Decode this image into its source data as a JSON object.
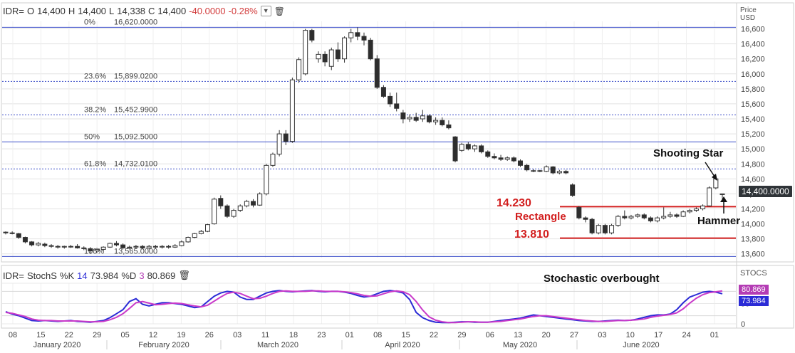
{
  "header": {
    "symbol": "IDR=",
    "open_label": "O",
    "open": "14,400",
    "high_label": "H",
    "high": "14,400",
    "low_label": "L",
    "low": "14,338",
    "close_label": "C",
    "close": "14,400",
    "change": "-40.0000",
    "change_pct": "-0.28%",
    "dropdown_icon": "chevron-down-icon",
    "delete_icon": "trash-icon"
  },
  "price_axis": {
    "title_line1": "Price",
    "title_line2": "USD",
    "last_value": "14,400.0000"
  },
  "stoch_header": {
    "symbol": "IDR=",
    "name": "StochS",
    "k_label": "%K",
    "k_period": "14",
    "k_value": "73.984",
    "d_label": "%D",
    "d_period": "3",
    "d_value": "80.869",
    "delete_icon": "trash-icon"
  },
  "stoch_axis": {
    "title": "STOCS",
    "d_tag": "80.869",
    "k_tag": "73.984"
  },
  "annotations": {
    "shooting_star": "Shooting Star",
    "hammer": "Hammer",
    "rect_top": "14.230",
    "rectangle": "Rectangle",
    "rect_bottom": "13.810",
    "stoch_overbought": "Stochastic overbought"
  },
  "colors": {
    "up_candle": "#ffffff",
    "down_candle": "#2d2d2d",
    "fib_line": "#3b4ec8",
    "rect_line": "#d21e1e",
    "k_line": "#2b2bd6",
    "d_line": "#c93ac9",
    "grid": "#e2e2e2"
  },
  "chart_data": [
    {
      "type": "candlestick",
      "title": "IDR=",
      "ylabel": "Price USD",
      "ylim": [
        13550,
        16700
      ],
      "yticks": [
        13600,
        13800,
        14000,
        14200,
        14400,
        14600,
        14800,
        15000,
        15200,
        15400,
        15600,
        15800,
        16000,
        16200,
        16400,
        16600
      ],
      "ytick_labels": [
        "13,600",
        "13,800",
        "14,000",
        "14,200",
        "14,400",
        "14,600",
        "14,800",
        "15,000",
        "15,200",
        "15,400",
        "15,600",
        "15,800",
        "16,000",
        "16,200",
        "16,400",
        "16,600"
      ],
      "x_tick_labels": [
        "08",
        "15",
        "22",
        "29",
        "05",
        "12",
        "19",
        "26",
        "03",
        "11",
        "18",
        "23",
        "01",
        "08",
        "15",
        "22",
        "29",
        "06",
        "13",
        "20",
        "27",
        "03",
        "10",
        "17",
        "24",
        "01"
      ],
      "month_labels": [
        "January 2020",
        "February 2020",
        "March 2020",
        "April 2020",
        "May 2020",
        "June 2020"
      ],
      "fibonacci": [
        {
          "label": "0%",
          "value": "16,620.0000",
          "price": 16620,
          "style": "solid"
        },
        {
          "label": "23.6%",
          "value": "15,899.0200",
          "price": 15899.02,
          "style": "dotted"
        },
        {
          "label": "38.2%",
          "value": "15,452.9900",
          "price": 15452.99,
          "style": "dotted"
        },
        {
          "label": "50%",
          "value": "15,092.5000",
          "price": 15092.5,
          "style": "solid"
        },
        {
          "label": "61.8%",
          "value": "14,732.0100",
          "price": 14732.01,
          "style": "dotted"
        },
        {
          "label": "100%",
          "value": "13,565.0000",
          "price": 13565,
          "style": "solid"
        }
      ],
      "rectangle_levels": [
        14230,
        13810
      ],
      "ohlc": [
        [
          13890,
          13900,
          13860,
          13880
        ],
        [
          13880,
          13900,
          13860,
          13870
        ],
        [
          13870,
          13880,
          13800,
          13820
        ],
        [
          13820,
          13830,
          13740,
          13760
        ],
        [
          13760,
          13770,
          13700,
          13720
        ],
        [
          13720,
          13760,
          13700,
          13740
        ],
        [
          13730,
          13750,
          13690,
          13710
        ],
        [
          13710,
          13730,
          13680,
          13700
        ],
        [
          13700,
          13720,
          13670,
          13690
        ],
        [
          13690,
          13710,
          13670,
          13700
        ],
        [
          13700,
          13720,
          13680,
          13700
        ],
        [
          13700,
          13730,
          13670,
          13680
        ],
        [
          13680,
          13700,
          13650,
          13670
        ],
        [
          13670,
          13690,
          13600,
          13640
        ],
        [
          13640,
          13680,
          13610,
          13660
        ],
        [
          13660,
          13700,
          13640,
          13690
        ],
        [
          13690,
          13750,
          13680,
          13740
        ],
        [
          13740,
          13770,
          13700,
          13720
        ],
        [
          13720,
          13740,
          13660,
          13680
        ],
        [
          13680,
          13710,
          13660,
          13690
        ],
        [
          13690,
          13720,
          13670,
          13700
        ],
        [
          13700,
          13720,
          13660,
          13680
        ],
        [
          13680,
          13720,
          13660,
          13700
        ],
        [
          13700,
          13720,
          13670,
          13690
        ],
        [
          13690,
          13720,
          13670,
          13700
        ],
        [
          13700,
          13720,
          13670,
          13690
        ],
        [
          13690,
          13730,
          13680,
          13710
        ],
        [
          13710,
          13780,
          13700,
          13760
        ],
        [
          13760,
          13830,
          13750,
          13820
        ],
        [
          13820,
          13880,
          13810,
          13870
        ],
        [
          13870,
          13920,
          13860,
          13900
        ],
        [
          13900,
          14000,
          13890,
          13990
        ],
        [
          14000,
          14350,
          13990,
          14330
        ],
        [
          14340,
          14380,
          14200,
          14240
        ],
        [
          14240,
          14260,
          14080,
          14100
        ],
        [
          14100,
          14200,
          14080,
          14180
        ],
        [
          14180,
          14260,
          14160,
          14240
        ],
        [
          14240,
          14320,
          14220,
          14300
        ],
        [
          14300,
          14330,
          14220,
          14250
        ],
        [
          14250,
          14420,
          14240,
          14400
        ],
        [
          14400,
          14800,
          14380,
          14780
        ],
        [
          14780,
          14950,
          14760,
          14930
        ],
        [
          14930,
          15250,
          14900,
          15200
        ],
        [
          15200,
          15250,
          15050,
          15100
        ],
        [
          15100,
          15950,
          15080,
          15920
        ],
        [
          15920,
          16220,
          15880,
          16190
        ],
        [
          16000,
          16600,
          15980,
          16580
        ],
        [
          16580,
          16600,
          16420,
          16450
        ],
        [
          16200,
          16300,
          16150,
          16260
        ],
        [
          16260,
          16300,
          16100,
          16160
        ],
        [
          16100,
          16350,
          16050,
          16320
        ],
        [
          16320,
          16420,
          16160,
          16200
        ],
        [
          16200,
          16500,
          16150,
          16480
        ],
        [
          16480,
          16600,
          16420,
          16550
        ],
        [
          16550,
          16620,
          16450,
          16500
        ],
        [
          16500,
          16550,
          16380,
          16450
        ],
        [
          16450,
          16480,
          16180,
          16200
        ],
        [
          16200,
          16250,
          15800,
          15820
        ],
        [
          15820,
          15850,
          15680,
          15700
        ],
        [
          15700,
          15750,
          15560,
          15600
        ],
        [
          15600,
          15750,
          15500,
          15540
        ],
        [
          15480,
          15520,
          15340,
          15400
        ],
        [
          15400,
          15460,
          15360,
          15420
        ],
        [
          15420,
          15480,
          15360,
          15380
        ],
        [
          15400,
          15520,
          15360,
          15440
        ],
        [
          15440,
          15460,
          15340,
          15360
        ],
        [
          15360,
          15420,
          15320,
          15380
        ],
        [
          15380,
          15420,
          15300,
          15320
        ],
        [
          15320,
          15380,
          15260,
          15280
        ],
        [
          15160,
          15170,
          14820,
          14840
        ],
        [
          14980,
          15080,
          14960,
          15060
        ],
        [
          15060,
          15090,
          14980,
          15000
        ],
        [
          15000,
          15060,
          14960,
          15040
        ],
        [
          15040,
          15060,
          14940,
          14960
        ],
        [
          14960,
          14980,
          14880,
          14900
        ],
        [
          14900,
          14940,
          14860,
          14880
        ],
        [
          14880,
          14920,
          14840,
          14860
        ],
        [
          14860,
          14900,
          14840,
          14880
        ],
        [
          14880,
          14900,
          14820,
          14840
        ],
        [
          14840,
          14860,
          14760,
          14780
        ],
        [
          14780,
          14800,
          14700,
          14720
        ],
        [
          14710,
          14730,
          14690,
          14710
        ],
        [
          14710,
          14720,
          14690,
          14700
        ],
        [
          14700,
          14780,
          14690,
          14760
        ],
        [
          14760,
          14770,
          14660,
          14680
        ],
        [
          14680,
          14720,
          14660,
          14700
        ],
        [
          14700,
          14720,
          14660,
          14680
        ],
        [
          14520,
          14540,
          14360,
          14380
        ],
        [
          14220,
          14240,
          14060,
          14080
        ],
        [
          14080,
          14100,
          14020,
          14060
        ],
        [
          14060,
          14080,
          13860,
          13880
        ],
        [
          13880,
          14000,
          13860,
          13980
        ],
        [
          13980,
          14000,
          13860,
          13880
        ],
        [
          13880,
          14000,
          13860,
          13980
        ],
        [
          13980,
          14120,
          13960,
          14100
        ],
        [
          14100,
          14180,
          14060,
          14080
        ],
        [
          14080,
          14120,
          14060,
          14100
        ],
        [
          14100,
          14140,
          14080,
          14120
        ],
        [
          14120,
          14140,
          14060,
          14080
        ],
        [
          14080,
          14100,
          14020,
          14040
        ],
        [
          14040,
          14100,
          14020,
          14080
        ],
        [
          14080,
          14220,
          14060,
          14100
        ],
        [
          14100,
          14160,
          14080,
          14120
        ],
        [
          14120,
          14140,
          14080,
          14100
        ],
        [
          14100,
          14180,
          14090,
          14160
        ],
        [
          14160,
          14200,
          14140,
          14180
        ],
        [
          14180,
          14220,
          14160,
          14200
        ],
        [
          14200,
          14260,
          14180,
          14240
        ],
        [
          14240,
          14500,
          14230,
          14480
        ],
        [
          14480,
          14640,
          14460,
          14600
        ],
        [
          14400,
          14400,
          14338,
          14400
        ]
      ]
    },
    {
      "type": "line",
      "title": "StochS %K 14 %D 3",
      "ylim": [
        0,
        100
      ],
      "yticks": [
        0,
        50
      ],
      "ytick_labels": [
        "0",
        "50"
      ],
      "series": [
        {
          "name": "%K",
          "values": [
            30,
            24,
            20,
            14,
            8,
            7,
            8,
            7,
            6,
            7,
            8,
            6,
            5,
            4,
            6,
            8,
            15,
            25,
            35,
            55,
            62,
            48,
            44,
            48,
            52,
            52,
            50,
            48,
            44,
            40,
            42,
            55,
            68,
            76,
            80,
            78,
            66,
            60,
            60,
            68,
            76,
            80,
            82,
            80,
            79,
            80,
            81,
            82,
            80,
            79,
            80,
            80,
            78,
            75,
            70,
            66,
            68,
            74,
            80,
            82,
            80,
            76,
            60,
            28,
            15,
            8,
            4,
            3,
            3,
            4,
            5,
            5,
            4,
            4,
            4,
            6,
            8,
            10,
            12,
            14,
            18,
            22,
            20,
            18,
            16,
            14,
            12,
            10,
            8,
            7,
            6,
            6,
            7,
            8,
            9,
            8,
            9,
            12,
            16,
            20,
            22,
            22,
            24,
            35,
            52,
            66,
            72,
            78,
            80,
            78,
            74
          ]
        },
        {
          "name": "%D",
          "values": [
            28,
            26,
            22,
            18,
            12,
            9,
            8,
            8,
            7,
            7,
            7,
            7,
            6,
            5,
            5,
            6,
            10,
            16,
            25,
            38,
            52,
            55,
            51,
            47,
            48,
            50,
            51,
            50,
            47,
            44,
            42,
            46,
            56,
            66,
            75,
            78,
            75,
            68,
            62,
            63,
            68,
            75,
            80,
            81,
            80,
            80,
            80,
            81,
            81,
            80,
            80,
            80,
            79,
            77,
            74,
            70,
            68,
            69,
            74,
            79,
            81,
            79,
            72,
            55,
            34,
            17,
            9,
            5,
            3,
            3,
            4,
            5,
            5,
            4,
            4,
            5,
            6,
            8,
            10,
            12,
            15,
            18,
            20,
            20,
            18,
            16,
            14,
            12,
            10,
            8,
            7,
            6,
            6,
            7,
            8,
            8,
            9,
            10,
            12,
            16,
            19,
            21,
            23,
            27,
            37,
            51,
            63,
            72,
            77,
            79,
            81
          ]
        }
      ]
    }
  ]
}
